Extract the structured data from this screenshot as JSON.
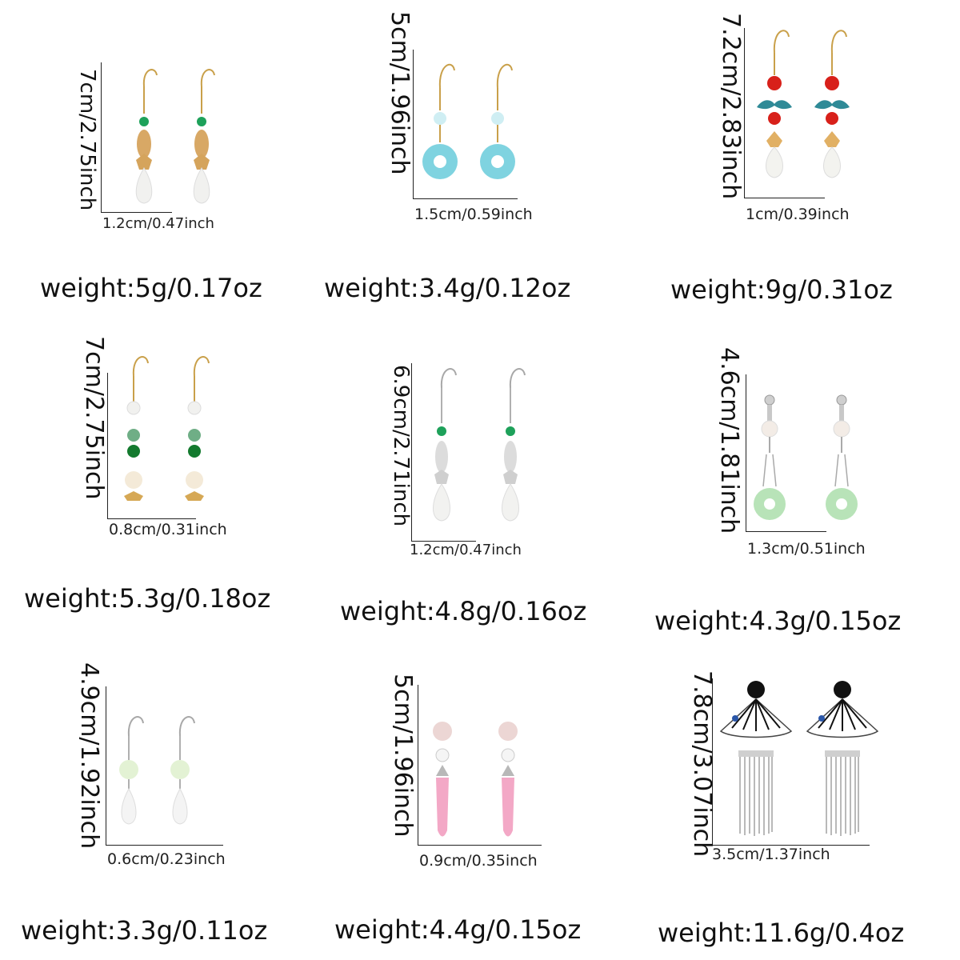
{
  "products": [
    {
      "height_label": "7cm/2.75inch",
      "width_label": "1.2cm/0.47inch",
      "weight_label": "weight:5g/0.17oz",
      "style": "drop-gold-green"
    },
    {
      "height_label": "5cm/1.96inch",
      "width_label": "1.5cm/0.59inch",
      "weight_label": "weight:3.4g/0.12oz",
      "style": "donut-blue"
    },
    {
      "height_label": "7.2cm/2.83inch",
      "width_label": "1cm/0.39inch",
      "weight_label": "weight:9g/0.31oz",
      "style": "red-leaf"
    },
    {
      "height_label": "7cm/2.75inch",
      "width_label": "0.8cm/0.31inch",
      "weight_label": "weight:5.3g/0.18oz",
      "style": "bead-stack"
    },
    {
      "height_label": "6.9cm/2.71inch",
      "width_label": "1.2cm/0.47inch",
      "weight_label": "weight:4.8g/0.16oz",
      "style": "drop-silver-green"
    },
    {
      "height_label": "4.6cm/1.81inch",
      "width_label": "1.3cm/0.51inch",
      "weight_label": "weight:4.3g/0.15oz",
      "style": "donut-green"
    },
    {
      "height_label": "4.9cm/1.92inch",
      "width_label": "0.6cm/0.23inch",
      "weight_label": "weight:3.3g/0.11oz",
      "style": "teardrop-white"
    },
    {
      "height_label": "5cm/1.96inch",
      "width_label": "0.9cm/0.35inch",
      "weight_label": "weight:4.4g/0.15oz",
      "style": "pink-drop"
    },
    {
      "height_label": "7.8cm/3.07inch",
      "width_label": "3.5cm/1.37inch",
      "weight_label": "weight:11.6g/0.4oz",
      "style": "fan-tassel"
    }
  ]
}
